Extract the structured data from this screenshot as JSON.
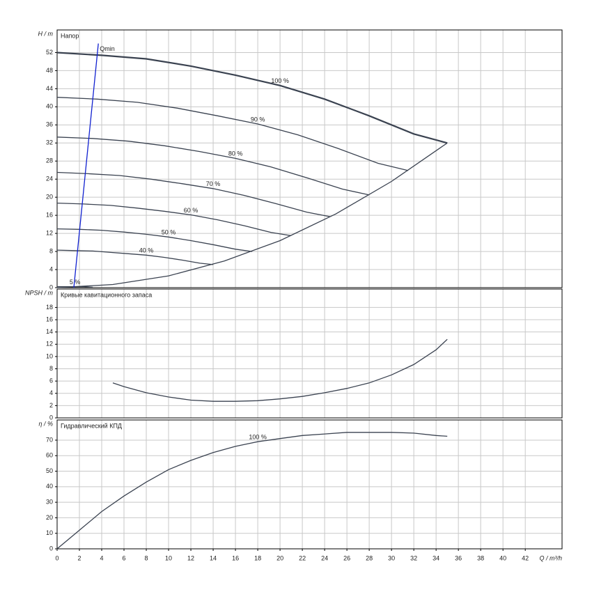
{
  "chart_data": [
    {
      "type": "line",
      "title": "Напор",
      "ylabel": "H / m",
      "xlim": [
        0,
        45.3
      ],
      "ylim": [
        0,
        57
      ],
      "yticks": [
        0,
        4,
        8,
        12,
        16,
        20,
        24,
        28,
        32,
        36,
        40,
        44,
        48,
        52
      ],
      "grid": true,
      "series": [
        {
          "name": "100 %",
          "color": "#3a4250",
          "x": [
            0,
            4,
            8,
            12,
            16,
            20,
            24,
            28,
            32,
            35
          ],
          "values": [
            52,
            51.4,
            50.6,
            49,
            47,
            44.7,
            41.7,
            38,
            34,
            32
          ]
        },
        {
          "name": "90 %",
          "color": "#3a4250",
          "x": [
            0,
            3.6,
            7.2,
            10.8,
            14.4,
            18,
            21.6,
            25.2,
            28.8,
            31.5
          ],
          "values": [
            42.1,
            41.7,
            41,
            39.7,
            38,
            36.2,
            33.8,
            30.8,
            27.5,
            25.9
          ]
        },
        {
          "name": "80 %",
          "color": "#3a4250",
          "x": [
            0,
            3.2,
            6.4,
            9.6,
            12.8,
            16,
            19.2,
            22.4,
            25.6,
            28
          ],
          "values": [
            33.3,
            33,
            32.4,
            31.4,
            30.1,
            28.6,
            26.7,
            24.3,
            21.8,
            20.5
          ]
        },
        {
          "name": "70 %",
          "color": "#3a4250",
          "x": [
            0,
            2.8,
            5.6,
            8.4,
            11.2,
            14,
            16.8,
            19.6,
            22.4,
            24.5
          ],
          "values": [
            25.5,
            25.2,
            24.8,
            24,
            23,
            21.9,
            20.4,
            18.6,
            16.7,
            15.7
          ]
        },
        {
          "name": "60 %",
          "color": "#3a4250",
          "x": [
            0,
            2.4,
            4.8,
            7.2,
            9.6,
            12,
            14.4,
            16.8,
            19.2,
            21
          ],
          "values": [
            18.7,
            18.5,
            18.2,
            17.6,
            16.9,
            16.1,
            15,
            13.7,
            12.2,
            11.5
          ]
        },
        {
          "name": "50 %",
          "color": "#3a4250",
          "x": [
            0,
            2,
            4,
            6,
            8,
            10,
            12,
            14,
            16,
            17.5
          ],
          "values": [
            13,
            12.9,
            12.7,
            12.3,
            11.8,
            11.2,
            10.4,
            9.5,
            8.5,
            8
          ]
        },
        {
          "name": "40 %",
          "color": "#3a4250",
          "x": [
            0,
            1.6,
            3.2,
            4.8,
            6.4,
            8,
            9.6,
            11.2,
            12.8,
            14
          ],
          "values": [
            8.3,
            8.2,
            8.1,
            7.8,
            7.5,
            7.2,
            6.7,
            6.1,
            5.4,
            5.1
          ]
        },
        {
          "name": "5 %",
          "color": "#3a4250",
          "x": [
            0,
            0.8,
            1.6,
            2.4,
            3.2
          ],
          "values": [
            0.2,
            0.2,
            0.2,
            0.2,
            0.1
          ]
        },
        {
          "color": "#3a4250",
          "x": [
            0,
            5,
            10,
            15,
            20,
            25,
            30,
            35
          ],
          "values": [
            0,
            0.7,
            2.6,
            5.9,
            10.4,
            16.3,
            23.5,
            32
          ]
        },
        {
          "name": "Qmin",
          "color": "#1020d0",
          "x": [
            1.5,
            3.7
          ],
          "values": [
            0,
            54
          ]
        }
      ]
    },
    {
      "type": "line",
      "title": "Кривые кавитационного запаса",
      "ylabel": "NPSH / m",
      "xlim": [
        0,
        45.3
      ],
      "ylim": [
        0,
        21
      ],
      "yticks": [
        0,
        2,
        4,
        6,
        8,
        10,
        12,
        14,
        16,
        18
      ],
      "grid": true,
      "series": [
        {
          "color": "#3a4250",
          "x": [
            5,
            6,
            8,
            10,
            12,
            14,
            16,
            18,
            20,
            22,
            24,
            26,
            28,
            30,
            32,
            34,
            35
          ],
          "values": [
            5.7,
            5.1,
            4.1,
            3.4,
            2.9,
            2.7,
            2.7,
            2.8,
            3.1,
            3.5,
            4.1,
            4.8,
            5.7,
            7,
            8.7,
            11.1,
            12.8
          ]
        }
      ]
    },
    {
      "type": "line",
      "title": "Гидравлический КПД",
      "ylabel": "η / %",
      "xlabel": "Q / m³/h",
      "xlim": [
        0,
        45.3
      ],
      "ylim": [
        0,
        83
      ],
      "yticks": [
        0,
        10,
        20,
        30,
        40,
        50,
        60,
        70
      ],
      "xticks": [
        0,
        2,
        4,
        6,
        8,
        10,
        12,
        14,
        16,
        18,
        20,
        22,
        24,
        26,
        28,
        30,
        32,
        34,
        36,
        38,
        40,
        42
      ],
      "grid": true,
      "series": [
        {
          "name": "100 %",
          "color": "#3a4250",
          "x": [
            0,
            2,
            4,
            6,
            8,
            10,
            12,
            14,
            16,
            18,
            20,
            22,
            24,
            26,
            28,
            30,
            32,
            34,
            35
          ],
          "values": [
            0,
            12,
            24,
            34,
            43,
            51,
            57,
            62,
            66,
            69,
            71,
            73,
            74,
            75,
            75,
            75,
            74.5,
            73,
            72.5
          ]
        }
      ]
    }
  ]
}
